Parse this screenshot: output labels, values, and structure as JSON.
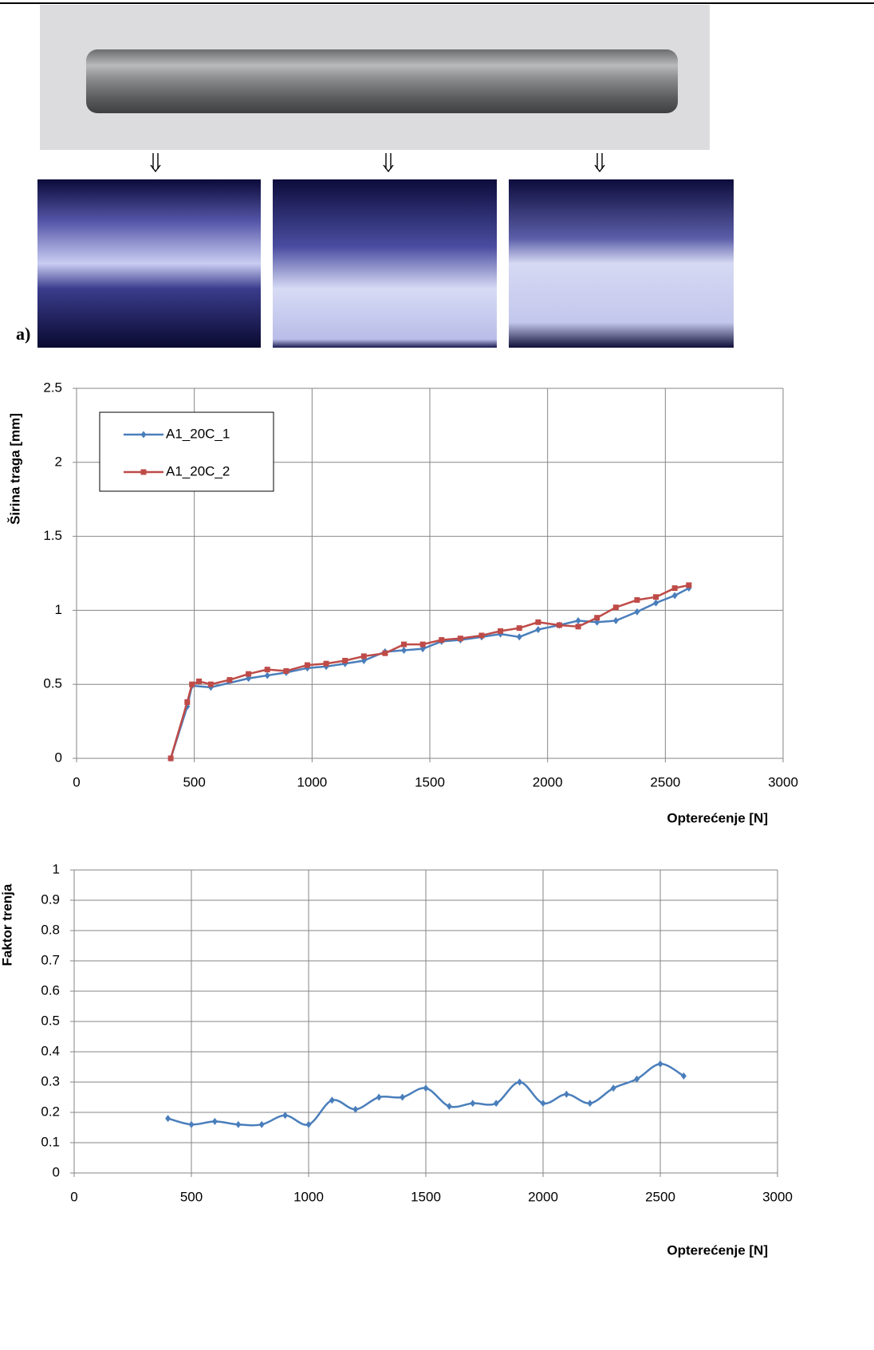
{
  "figure_label": "a)",
  "chart_data": [
    {
      "type": "line",
      "xlabel": "Opterećenje [N]",
      "ylabel": "Širina traga [mm]",
      "xlim": [
        0,
        3000
      ],
      "ylim": [
        0,
        2.5
      ],
      "xticks": [
        0,
        500,
        1000,
        1500,
        2000,
        2500,
        3000
      ],
      "yticks": [
        0,
        0.5,
        1,
        1.5,
        2,
        2.5
      ],
      "grid": true,
      "legend": "upper left",
      "series": [
        {
          "name": "A1_20C_1",
          "color": "#4a7ebb",
          "marker": "diamond",
          "x": [
            400,
            470,
            490,
            570,
            730,
            810,
            890,
            980,
            1060,
            1140,
            1220,
            1310,
            1390,
            1470,
            1550,
            1630,
            1720,
            1800,
            1880,
            1960,
            2050,
            2130,
            2210,
            2290,
            2380,
            2460,
            2540,
            2600
          ],
          "values": [
            0,
            0.35,
            0.49,
            0.48,
            0.54,
            0.56,
            0.58,
            0.61,
            0.62,
            0.64,
            0.66,
            0.72,
            0.73,
            0.74,
            0.79,
            0.8,
            0.82,
            0.84,
            0.82,
            0.87,
            0.9,
            0.93,
            0.92,
            0.93,
            0.99,
            1.05,
            1.1,
            1.15
          ]
        },
        {
          "name": "A1_20C_2",
          "color": "#be4b48",
          "marker": "square",
          "x": [
            400,
            470,
            490,
            520,
            570,
            650,
            730,
            810,
            890,
            980,
            1060,
            1140,
            1220,
            1310,
            1390,
            1470,
            1550,
            1630,
            1720,
            1800,
            1880,
            1960,
            2050,
            2130,
            2210,
            2290,
            2380,
            2460,
            2540,
            2600
          ],
          "values": [
            0,
            0.38,
            0.5,
            0.52,
            0.5,
            0.53,
            0.57,
            0.6,
            0.59,
            0.63,
            0.64,
            0.66,
            0.69,
            0.71,
            0.77,
            0.77,
            0.8,
            0.81,
            0.83,
            0.86,
            0.88,
            0.92,
            0.9,
            0.89,
            0.95,
            1.02,
            1.07,
            1.09,
            1.15,
            1.17
          ]
        }
      ]
    },
    {
      "type": "line",
      "xlabel": "Opterećenje [N]",
      "ylabel": "Faktor trenja",
      "xlim": [
        0,
        3000
      ],
      "ylim": [
        0,
        1
      ],
      "xticks": [
        0,
        500,
        1000,
        1500,
        2000,
        2500,
        3000
      ],
      "yticks": [
        0,
        0.1,
        0.2,
        0.3,
        0.4,
        0.5,
        0.6,
        0.7,
        0.8,
        0.9,
        1
      ],
      "grid": true,
      "smooth": true,
      "series": [
        {
          "color": "#4a7ebb",
          "marker": "diamond",
          "x": [
            400,
            500,
            600,
            700,
            800,
            900,
            1000,
            1100,
            1200,
            1300,
            1400,
            1500,
            1600,
            1700,
            1800,
            1900,
            2000,
            2100,
            2200,
            2300,
            2400,
            2500,
            2600
          ],
          "values": [
            0.18,
            0.16,
            0.17,
            0.16,
            0.16,
            0.19,
            0.16,
            0.24,
            0.21,
            0.25,
            0.25,
            0.28,
            0.22,
            0.23,
            0.23,
            0.3,
            0.23,
            0.26,
            0.23,
            0.28,
            0.31,
            0.36,
            0.32
          ]
        }
      ]
    }
  ]
}
